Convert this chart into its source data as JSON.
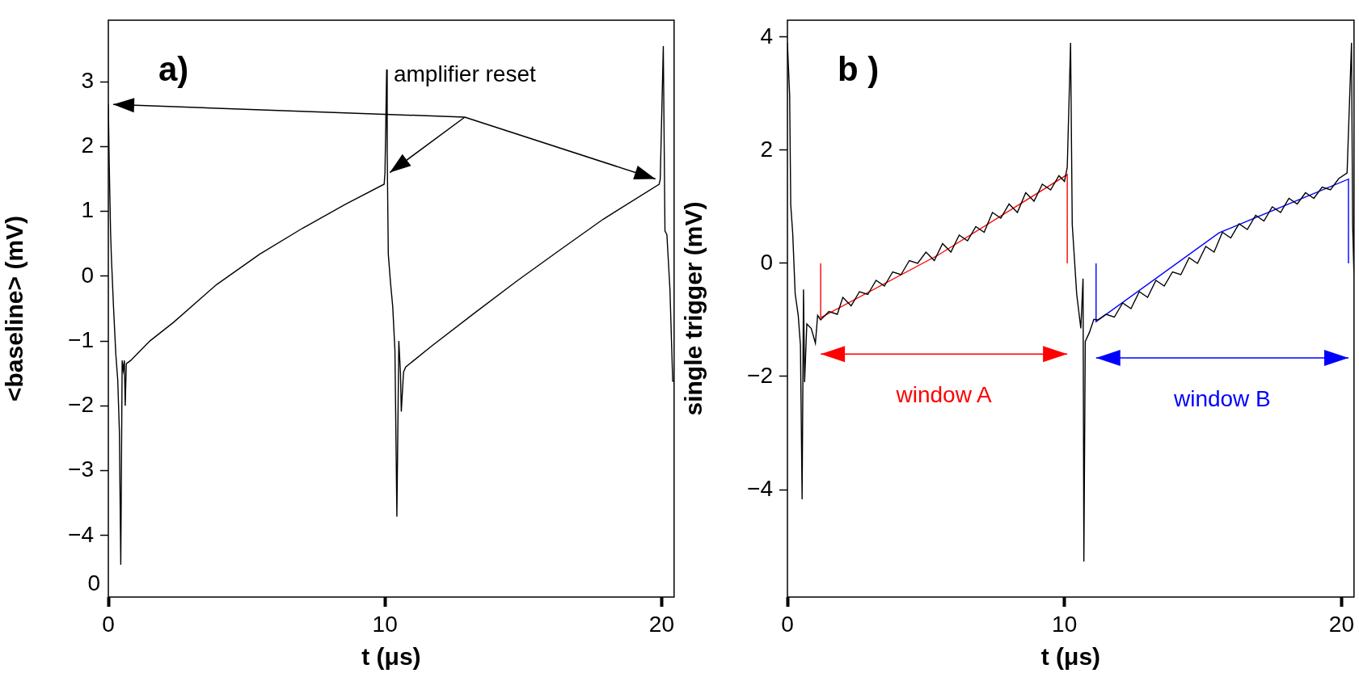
{
  "chart_data": [
    {
      "type": "line",
      "xlabel": "t (μs)",
      "ylabel": "<baseline> (mV)",
      "xlim": [
        0,
        20.45
      ],
      "ylim": [
        -4.95,
        3.95
      ],
      "xticks": [
        0,
        10,
        20
      ],
      "yticks": [
        -4,
        -3,
        -2,
        -1,
        0,
        1,
        2,
        3
      ],
      "annotations": [
        "a)",
        "amplifier reset",
        "0"
      ],
      "series": [
        {
          "color": "#000000",
          "x": [
            0,
            0.03,
            0.08,
            0.11,
            0.13,
            0.19,
            0.27,
            0.34,
            0.4,
            0.45,
            0.5,
            0.54,
            0.58,
            0.61,
            0.65,
            0.81,
            1.5,
            2.36,
            3.91,
            5.47,
            7.02,
            8.57,
            9.97,
            10.0,
            10.06,
            10.08,
            10.12,
            10.2,
            10.28,
            10.36,
            10.43,
            10.5,
            10.56,
            10.59,
            10.67,
            10.75,
            11.68,
            13.23,
            14.78,
            16.34,
            17.89,
            19.91,
            19.95,
            20.06,
            20.12,
            20.19,
            20.3,
            20.4,
            20.45
          ],
          "values": [
            2.65,
            1.8,
            0.7,
            0.3,
            0.1,
            -0.5,
            -1.2,
            -1.6,
            -2.4,
            -4.45,
            -1.3,
            -1.45,
            -1.3,
            -2.0,
            -1.35,
            -1.3,
            -1.0,
            -0.71,
            -0.13,
            0.34,
            0.74,
            1.11,
            1.42,
            1.6,
            3.19,
            1.92,
            0.34,
            -0.1,
            -0.47,
            -1.15,
            -3.71,
            -1.0,
            -1.5,
            -2.09,
            -1.48,
            -1.4,
            -1.08,
            -0.57,
            -0.07,
            0.41,
            0.88,
            1.42,
            1.5,
            3.55,
            0.7,
            0.64,
            -0.2,
            -1.62,
            -1.62
          ]
        }
      ]
    },
    {
      "type": "line",
      "xlabel": "t (μs)",
      "ylabel": "single trigger (mV)",
      "xlim": [
        0,
        20.45
      ],
      "ylim": [
        -5.9,
        4.3
      ],
      "xticks": [
        0,
        10,
        20
      ],
      "yticks": [
        -4,
        -2,
        0,
        2,
        4
      ],
      "annotations": [
        "b )",
        "window A",
        "window B"
      ],
      "series": [
        {
          "color": "#000000",
          "x": [
            0,
            0.08,
            0.12,
            0.19,
            0.28,
            0.39,
            0.47,
            0.53,
            0.58,
            0.62,
            0.7,
            0.86,
            1.01,
            1.09,
            1.2,
            1.5,
            1.8,
            2.0,
            2.3,
            2.6,
            2.9,
            3.2,
            3.5,
            3.8,
            4.1,
            4.4,
            4.7,
            5.0,
            5.3,
            5.6,
            5.9,
            6.2,
            6.5,
            6.8,
            7.1,
            7.4,
            7.7,
            8.0,
            8.3,
            8.6,
            8.9,
            9.2,
            9.5,
            9.8,
            10.0,
            10.1,
            10.22,
            10.28,
            10.44,
            10.59,
            10.67,
            10.7,
            10.75,
            10.9,
            11.06,
            11.2,
            11.5,
            11.8,
            12.1,
            12.4,
            12.7,
            13.0,
            13.3,
            13.6,
            13.9,
            14.2,
            14.5,
            14.8,
            15.1,
            15.4,
            15.7,
            16.0,
            16.3,
            16.6,
            16.9,
            17.2,
            17.5,
            17.8,
            18.1,
            18.4,
            18.7,
            19.0,
            19.3,
            19.6,
            19.9,
            20.2,
            20.36,
            20.4,
            20.45
          ],
          "values": [
            3.9,
            2.98,
            1.03,
            0.54,
            -0.54,
            -0.92,
            -1.45,
            -4.17,
            -0.46,
            -2.1,
            -1.07,
            -1.15,
            -1.41,
            -0.92,
            -1.0,
            -0.85,
            -0.9,
            -0.6,
            -0.75,
            -0.5,
            -0.55,
            -0.3,
            -0.4,
            -0.15,
            -0.2,
            0.05,
            0.0,
            0.2,
            0.05,
            0.35,
            0.2,
            0.5,
            0.4,
            0.65,
            0.55,
            0.9,
            0.8,
            1.05,
            0.9,
            1.25,
            1.1,
            1.4,
            1.3,
            1.55,
            1.45,
            1.7,
            3.9,
            0.69,
            -0.54,
            -1.15,
            -0.27,
            -5.27,
            -1.38,
            -1.22,
            -0.99,
            -1.0,
            -0.9,
            -0.95,
            -0.7,
            -0.8,
            -0.5,
            -0.6,
            -0.3,
            -0.4,
            -0.15,
            -0.2,
            0.1,
            0.0,
            0.3,
            0.2,
            0.55,
            0.45,
            0.7,
            0.6,
            0.85,
            0.75,
            1.0,
            0.9,
            1.15,
            1.05,
            1.25,
            1.15,
            1.35,
            1.3,
            1.5,
            1.6,
            3.9,
            0.69,
            -0.23
          ]
        },
        {
          "type": "line",
          "color": "#ff0000",
          "x": [
            1.2,
            1.2,
            5.45,
            10.1,
            10.1
          ],
          "values": [
            0,
            -0.96,
            0.15,
            1.57,
            0
          ]
        },
        {
          "type": "line",
          "color": "#0000ff",
          "x": [
            11.14,
            11.14,
            15.58,
            20.25,
            20.25
          ],
          "values": [
            0,
            -1.03,
            0.54,
            1.49,
            0
          ]
        }
      ]
    }
  ]
}
